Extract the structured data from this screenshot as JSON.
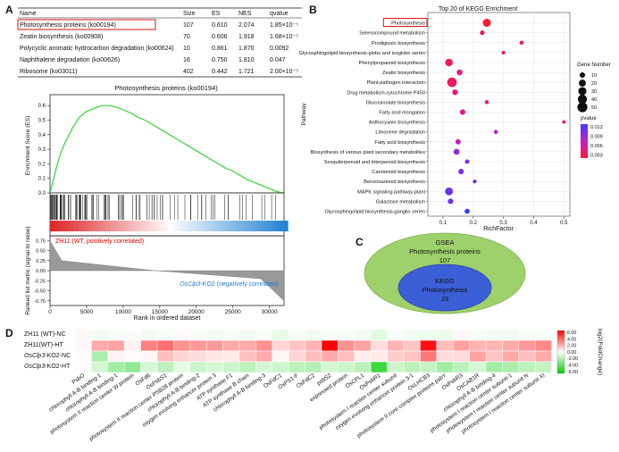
{
  "panel_labels": {
    "a": "A",
    "b": "B",
    "c": "C",
    "d": "D"
  },
  "table": {
    "headers": [
      "Name",
      "Size",
      "ES",
      "NES",
      "qvalue"
    ],
    "rows": [
      [
        "Photosynthesis proteins (ko00194)",
        "107",
        "0.610",
        "2.074",
        "1.85×10⁻⁵"
      ],
      [
        "Zeatin biosynthesis (ko00908)",
        "70",
        "0.606",
        "1.918",
        "1.68×10⁻⁵"
      ],
      [
        "Polycyclic aromatic hydrocarbon degradation (ko00624)",
        "10",
        "0.861",
        "1.870",
        "0.0092"
      ],
      [
        "Naphthalene degradation (ko00626)",
        "16",
        "0.750",
        "1.810",
        "0.047"
      ],
      [
        "Ribosome (ko03011)",
        "402",
        "0.442",
        "1.721",
        "2.00×10⁻⁵"
      ]
    ]
  },
  "gsea": {
    "title": "Photosynthesis proteins (ko00194)",
    "ylabel_es": "Enrichment Score (ES)",
    "ylabel_metric": "Ranked list metric (signal to noise)",
    "xlabel": "Rank in ordered dataset",
    "es_ticks": [
      "0.6",
      "0.5",
      "0.4",
      "0.3",
      "0.2",
      "0.1",
      "0.0"
    ],
    "metric_ticks": [
      "0.75",
      "0.50",
      "0.25",
      "0.00",
      "-0.25",
      "-0.50",
      "-0.75"
    ],
    "x_ticks": [
      "0",
      "5000",
      "10000",
      "15000",
      "20000",
      "25000",
      "30000"
    ],
    "pos_label": "ZH11 (WT, positively correlated)",
    "neg_gene": "OsClp3",
    "neg_rest": "-KO2 (negatively correlated)"
  },
  "chart_data": [
    {
      "type": "line",
      "title": "Photosynthesis proteins (ko00194)",
      "xlabel": "Rank in ordered dataset",
      "ylabel": "Enrichment Score (ES)",
      "x": [
        0,
        500,
        1000,
        1500,
        2000,
        2500,
        3000,
        3500,
        4000,
        5000,
        6000,
        7000,
        8000,
        9000,
        10000,
        11000,
        12000,
        13000,
        14000,
        15000,
        16000,
        17000,
        18000,
        19000,
        20000,
        21000,
        22000,
        23000,
        24000,
        25000,
        26000,
        27000,
        28000,
        29000,
        30000,
        31000,
        32000
      ],
      "y": [
        0.0,
        0.1,
        0.2,
        0.28,
        0.34,
        0.39,
        0.44,
        0.48,
        0.52,
        0.56,
        0.58,
        0.6,
        0.6,
        0.59,
        0.57,
        0.55,
        0.52,
        0.5,
        0.47,
        0.44,
        0.41,
        0.38,
        0.35,
        0.32,
        0.29,
        0.26,
        0.23,
        0.2,
        0.17,
        0.15,
        0.12,
        0.09,
        0.07,
        0.05,
        0.03,
        0.01,
        0.0
      ],
      "xlim": [
        0,
        32000
      ],
      "ylim": [
        0,
        0.65
      ]
    },
    {
      "type": "scatter",
      "title": "Top 20 of KEGG Enrichment",
      "xlabel": "RichFactor",
      "ylabel": "Pathway",
      "xlim": [
        0.05,
        0.52
      ],
      "x_ticks": [
        "0.1",
        "0.2",
        "0.3",
        "0.4",
        "0.5"
      ],
      "categories": [
        "Photosynthesis",
        "Selenocompound metabolism",
        "Prodigiosin biosynthesis",
        "Glycosphingolipid biosynthesis-globo and isoglobo series",
        "Phenylpropanoid biosynthesis",
        "Zeatin biosynthesis",
        "Plant-pathogen interaction",
        "Drug metabolism-cytochrome P450",
        "Glucosinolate biosynthesis",
        "Fatty acid elongation",
        "Anthocyanin biosynthesis",
        "Limonene degradation",
        "Fatty acid biosynthesis",
        "Biosynthesis of various plant secondary metabolites",
        "Sesquiterpenoid and triterpenoid biosynthesis",
        "Carotenoid biosynthesis",
        "Benzoxazinoid biosynthesis",
        "MAPK signaling pathway-plant",
        "Galactose metabolism",
        "Glycosphingolipid biosynthesis-ganglio series"
      ],
      "rich_factor": [
        0.245,
        0.23,
        0.36,
        0.3,
        0.12,
        0.155,
        0.13,
        0.14,
        0.245,
        0.165,
        0.5,
        0.275,
        0.15,
        0.145,
        0.18,
        0.16,
        0.205,
        0.12,
        0.125,
        0.18
      ],
      "gene_number": [
        29,
        6,
        4,
        3,
        25,
        12,
        45,
        11,
        4,
        10,
        2,
        4,
        9,
        13,
        5,
        10,
        3,
        27,
        10,
        8
      ],
      "pvalue": [
        0.0002,
        0.0015,
        0.002,
        0.002,
        0.0015,
        0.003,
        0.002,
        0.003,
        0.003,
        0.004,
        0.001,
        0.007,
        0.006,
        0.008,
        0.009,
        0.009,
        0.01,
        0.01,
        0.01,
        0.012
      ],
      "highlight": "Photosynthesis",
      "legend": {
        "size_title": "Gene Number",
        "size_values": [
          10,
          20,
          30,
          40,
          50
        ],
        "color_title": "pvalue",
        "color_ticks": [
          "0.012",
          "0.009",
          "0.006",
          "0.003"
        ]
      }
    },
    {
      "type": "heatmap",
      "rows": [
        "ZH11 (WT)-NC",
        "ZH11(WT)-HT",
        "OsClp3-KO2-NC",
        "OsClp3-KO2-HT"
      ],
      "columns": [
        "PsbO",
        "chlorophyll A-B binding-1",
        "chlorophyll A-B binding-1",
        "photosystem II reaction center W protein",
        "OsFd6",
        "OsPsbS1",
        "photosystem II reaction center PSB28 protein",
        "chlorophyll A-B binding-2",
        "oxygen evolving enhancer protein 3",
        "ATP synthase F1",
        "ATP synthase B chain",
        "chlorophyll A-B binding-3",
        "OsFdC1",
        "OsPS1-F",
        "OsFdC2",
        "psbS2",
        "expressed protein",
        "OsCPL1",
        "OsPsbR1",
        "photosystem I reaction center subunit",
        "oxygen evolving enhancer protein 3-1",
        "OsLHCB3",
        "photosystem II core complex proteins psbY",
        "OsPsbR3",
        "OsCAB1R",
        "chlorophyll A-B binding-4",
        "photosystem I reaction center subunit-1",
        "photosystem I reaction center subunit N",
        "photosystem I reaction center subunit XI"
      ],
      "values": [
        [
          0.2,
          -0.3,
          -0.2,
          0.1,
          -0.3,
          -0.2,
          0.1,
          -0.2,
          -0.3,
          -0.2,
          -0.3,
          -0.2,
          -0.6,
          -0.2,
          -0.3,
          -0.2,
          -0.2,
          -0.3,
          -0.7,
          -0.2,
          -0.3,
          -0.4,
          -0.5,
          0.2,
          -0.2,
          -0.3,
          -0.3,
          -0.2,
          -0.2
        ],
        [
          0.2,
          2.0,
          2.2,
          0.3,
          3.0,
          3.4,
          2.6,
          2.4,
          2.4,
          2.0,
          2.0,
          2.6,
          1.0,
          1.4,
          1.8,
          6.0,
          2.6,
          2.2,
          0.8,
          1.8,
          1.4,
          5.6,
          1.5,
          2.2,
          1.8,
          1.8,
          2.0,
          2.4,
          2.8
        ],
        [
          0.1,
          -2.0,
          0.3,
          0.1,
          0.2,
          1.5,
          1.0,
          0.8,
          0.6,
          0.5,
          1.5,
          2.0,
          0.2,
          1.0,
          1.5,
          2.0,
          1.5,
          0.4,
          0.5,
          1.2,
          1.4,
          3.2,
          0.8,
          0.8,
          2.2,
          1.4,
          2.0,
          1.5,
          2.0
        ],
        [
          0.1,
          -1.0,
          -2.2,
          -2.6,
          -1.0,
          -1.6,
          -0.6,
          -1.2,
          -1.0,
          -1.2,
          -1.6,
          -1.0,
          -1.2,
          -1.6,
          -1.8,
          -1.0,
          -1.2,
          -1.6,
          -4.6,
          -1.2,
          -1.6,
          -1.4,
          -2.2,
          -1.6,
          -1.0,
          -2.2,
          -2.0,
          -1.6,
          -1.4
        ]
      ],
      "colorbar_label": "log2(FoldChange)",
      "colorbar_ticks": [
        "6.00",
        "4.00",
        "2.00",
        "0.00",
        "-2.00",
        "-4.00",
        "-6.00"
      ],
      "range": [
        -6,
        6
      ]
    }
  ],
  "kegg": {
    "title": "Top 20 of KEGG Enrichment",
    "ylabel": "Pathway",
    "xlabel": "RichFactor"
  },
  "venn": {
    "outer_l1": "GSEA",
    "outer_l2": "Photosynthesis proteins",
    "outer_l3": "107",
    "inner_l1": "KEGG",
    "inner_l2": "Photosynthesis",
    "inner_l3": "29"
  },
  "heatmap_rows": [
    {
      "plain": "ZH11 (WT)-NC"
    },
    {
      "plain": "ZH11(WT)-HT"
    },
    {
      "italic": "OsClp3",
      "rest": "-KO2-NC"
    },
    {
      "italic": "OsClp3",
      "rest": "-KO2-HT"
    }
  ],
  "colors": {
    "green": "#33d633",
    "red": "#e00000",
    "blue": "#1e7dd0",
    "venn_outer": "#9ed06c",
    "venn_inner": "#3b5fd6",
    "box": "#d11"
  }
}
